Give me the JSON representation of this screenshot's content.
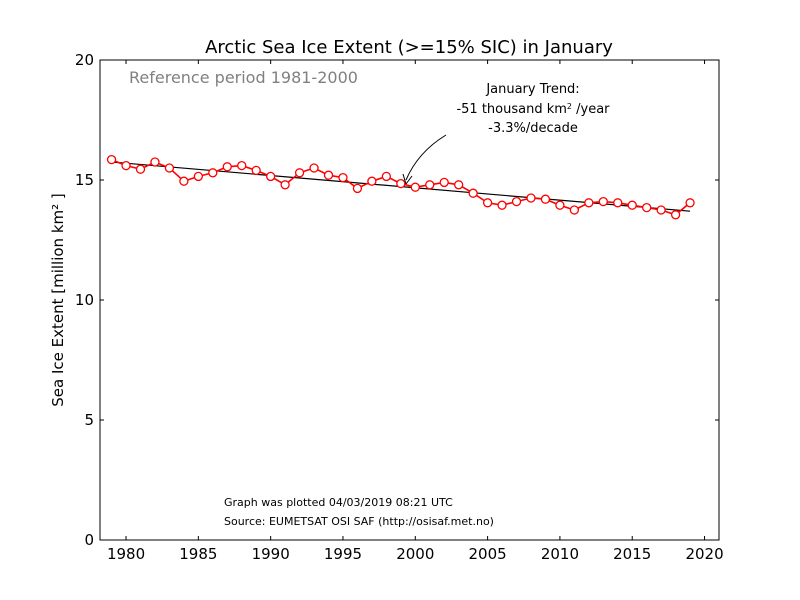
{
  "colors": {
    "series": "#ff0000",
    "trend": "#000000",
    "reference_text": "#808080",
    "background": "#ffffff"
  },
  "chart_data": {
    "type": "line",
    "title": "Arctic Sea Ice Extent (>=15% SIC) in January",
    "xlabel": "",
    "ylabel": "Sea Ice Extent [million km² ]",
    "xlim": [
      1978.2,
      2021
    ],
    "ylim": [
      0,
      20
    ],
    "xticks": [
      1980,
      1985,
      1990,
      1995,
      2000,
      2005,
      2010,
      2015,
      2020
    ],
    "yticks": [
      0,
      5,
      10,
      15,
      20
    ],
    "grid": false,
    "reference_text": "Reference period 1981-2000",
    "annotation": {
      "line1": "January Trend:",
      "line2_value": "-51 thousand km",
      "line2_sup": "2",
      "line2_unit": " /year",
      "line3": "-3.3%/decade",
      "arrow_target": {
        "x": 1999,
        "y": 14.8
      }
    },
    "trend_line": {
      "x": [
        1979,
        2019
      ],
      "y": [
        15.75,
        13.7
      ]
    },
    "series": [
      {
        "x": [
          1979,
          1980,
          1981,
          1982,
          1983,
          1984,
          1985,
          1986,
          1987,
          1988,
          1989,
          1990,
          1991,
          1992,
          1993,
          1994,
          1995,
          1996,
          1997,
          1998,
          1999,
          2000,
          2001,
          2002,
          2003,
          2004,
          2005,
          2006,
          2007,
          2008,
          2009,
          2010,
          2011,
          2012,
          2013,
          2014,
          2015,
          2016,
          2017,
          2018,
          2019
        ],
        "y": [
          15.85,
          15.6,
          15.45,
          15.75,
          15.5,
          14.95,
          15.15,
          15.3,
          15.55,
          15.6,
          15.4,
          15.15,
          14.8,
          15.3,
          15.5,
          15.2,
          15.1,
          14.65,
          14.95,
          15.15,
          14.85,
          14.7,
          14.8,
          14.9,
          14.8,
          14.45,
          14.05,
          13.95,
          14.1,
          14.25,
          14.2,
          13.95,
          13.75,
          14.05,
          14.1,
          14.05,
          13.95,
          13.85,
          13.75,
          13.55,
          14.05
        ]
      }
    ]
  },
  "footer": {
    "plotted": "Graph was plotted 04/03/2019 08:21 UTC",
    "source": "Source: EUMETSAT OSI SAF (http://osisaf.met.no)"
  }
}
